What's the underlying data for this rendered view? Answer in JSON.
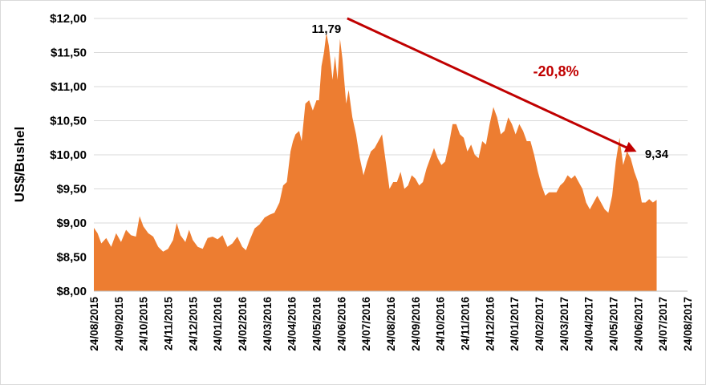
{
  "chart_data": {
    "type": "area",
    "title": "",
    "xlabel": "",
    "ylabel": "US$/Bushel",
    "ylim": [
      8.0,
      12.0
    ],
    "yticks": [
      "$8,00",
      "$8,50",
      "$9,00",
      "$9,50",
      "$10,00",
      "$10,50",
      "$11,00",
      "$11,50",
      "$12,00"
    ],
    "xticks": [
      "24/08/2015",
      "24/09/2015",
      "24/10/2015",
      "24/11/2015",
      "24/12/2015",
      "24/01/2016",
      "24/02/2016",
      "24/03/2016",
      "24/04/2016",
      "24/05/2016",
      "24/06/2016",
      "24/07/2016",
      "24/08/2016",
      "24/09/2016",
      "24/10/2016",
      "24/11/2016",
      "24/12/2016",
      "24/01/2017",
      "24/02/2017",
      "24/03/2017",
      "24/04/2017",
      "24/05/2017",
      "24/06/2017",
      "24/07/2017",
      "24/08/2017"
    ],
    "grid": true,
    "fill_color": "#ed7d31",
    "series": [
      {
        "points": [
          [
            0,
            8.93
          ],
          [
            0.15,
            8.85
          ],
          [
            0.3,
            8.7
          ],
          [
            0.5,
            8.78
          ],
          [
            0.7,
            8.65
          ],
          [
            0.9,
            8.85
          ],
          [
            1.1,
            8.72
          ],
          [
            1.3,
            8.9
          ],
          [
            1.5,
            8.82
          ],
          [
            1.7,
            8.8
          ],
          [
            1.85,
            9.1
          ],
          [
            2.0,
            8.95
          ],
          [
            2.2,
            8.85
          ],
          [
            2.4,
            8.8
          ],
          [
            2.6,
            8.65
          ],
          [
            2.8,
            8.58
          ],
          [
            3.0,
            8.62
          ],
          [
            3.2,
            8.75
          ],
          [
            3.35,
            9.0
          ],
          [
            3.5,
            8.82
          ],
          [
            3.7,
            8.72
          ],
          [
            3.85,
            8.9
          ],
          [
            4.0,
            8.75
          ],
          [
            4.2,
            8.65
          ],
          [
            4.4,
            8.62
          ],
          [
            4.6,
            8.78
          ],
          [
            4.8,
            8.8
          ],
          [
            5.0,
            8.76
          ],
          [
            5.2,
            8.82
          ],
          [
            5.4,
            8.65
          ],
          [
            5.6,
            8.7
          ],
          [
            5.8,
            8.8
          ],
          [
            6.0,
            8.65
          ],
          [
            6.15,
            8.6
          ],
          [
            6.3,
            8.75
          ],
          [
            6.5,
            8.92
          ],
          [
            6.7,
            8.98
          ],
          [
            6.9,
            9.08
          ],
          [
            7.1,
            9.12
          ],
          [
            7.3,
            9.15
          ],
          [
            7.5,
            9.3
          ],
          [
            7.65,
            9.55
          ],
          [
            7.8,
            9.6
          ],
          [
            7.95,
            10.05
          ],
          [
            8.05,
            10.2
          ],
          [
            8.15,
            10.3
          ],
          [
            8.3,
            10.35
          ],
          [
            8.4,
            10.2
          ],
          [
            8.55,
            10.75
          ],
          [
            8.7,
            10.8
          ],
          [
            8.85,
            10.65
          ],
          [
            9.0,
            10.8
          ],
          [
            9.1,
            10.8
          ],
          [
            9.2,
            11.3
          ],
          [
            9.3,
            11.5
          ],
          [
            9.4,
            11.79
          ],
          [
            9.5,
            11.6
          ],
          [
            9.65,
            11.1
          ],
          [
            9.75,
            11.45
          ],
          [
            9.85,
            11.1
          ],
          [
            9.95,
            11.7
          ],
          [
            10.05,
            11.4
          ],
          [
            10.2,
            10.75
          ],
          [
            10.3,
            10.95
          ],
          [
            10.45,
            10.55
          ],
          [
            10.6,
            10.3
          ],
          [
            10.75,
            9.95
          ],
          [
            10.9,
            9.7
          ],
          [
            11.05,
            9.9
          ],
          [
            11.2,
            10.05
          ],
          [
            11.35,
            10.1
          ],
          [
            11.5,
            10.2
          ],
          [
            11.65,
            10.3
          ],
          [
            11.8,
            9.9
          ],
          [
            11.95,
            9.5
          ],
          [
            12.1,
            9.6
          ],
          [
            12.25,
            9.6
          ],
          [
            12.4,
            9.75
          ],
          [
            12.55,
            9.5
          ],
          [
            12.7,
            9.55
          ],
          [
            12.85,
            9.7
          ],
          [
            13.0,
            9.65
          ],
          [
            13.15,
            9.55
          ],
          [
            13.3,
            9.6
          ],
          [
            13.45,
            9.8
          ],
          [
            13.6,
            9.95
          ],
          [
            13.75,
            10.1
          ],
          [
            13.9,
            9.95
          ],
          [
            14.05,
            9.85
          ],
          [
            14.2,
            9.9
          ],
          [
            14.35,
            10.15
          ],
          [
            14.5,
            10.45
          ],
          [
            14.65,
            10.45
          ],
          [
            14.8,
            10.3
          ],
          [
            14.95,
            10.25
          ],
          [
            15.1,
            10.05
          ],
          [
            15.25,
            10.15
          ],
          [
            15.4,
            10.0
          ],
          [
            15.55,
            9.95
          ],
          [
            15.7,
            10.2
          ],
          [
            15.85,
            10.15
          ],
          [
            16.0,
            10.45
          ],
          [
            16.15,
            10.7
          ],
          [
            16.3,
            10.55
          ],
          [
            16.45,
            10.3
          ],
          [
            16.6,
            10.35
          ],
          [
            16.75,
            10.55
          ],
          [
            16.9,
            10.45
          ],
          [
            17.05,
            10.3
          ],
          [
            17.2,
            10.45
          ],
          [
            17.35,
            10.35
          ],
          [
            17.5,
            10.2
          ],
          [
            17.65,
            10.2
          ],
          [
            17.8,
            10.0
          ],
          [
            17.95,
            9.75
          ],
          [
            18.1,
            9.55
          ],
          [
            18.25,
            9.4
          ],
          [
            18.4,
            9.45
          ],
          [
            18.55,
            9.45
          ],
          [
            18.7,
            9.45
          ],
          [
            18.85,
            9.55
          ],
          [
            19.0,
            9.6
          ],
          [
            19.15,
            9.7
          ],
          [
            19.3,
            9.65
          ],
          [
            19.45,
            9.7
          ],
          [
            19.6,
            9.6
          ],
          [
            19.75,
            9.5
          ],
          [
            19.9,
            9.3
          ],
          [
            20.05,
            9.2
          ],
          [
            20.2,
            9.3
          ],
          [
            20.35,
            9.4
          ],
          [
            20.5,
            9.3
          ],
          [
            20.65,
            9.2
          ],
          [
            20.8,
            9.15
          ],
          [
            20.95,
            9.4
          ],
          [
            21.1,
            9.9
          ],
          [
            21.25,
            10.25
          ],
          [
            21.4,
            9.85
          ],
          [
            21.55,
            10.05
          ],
          [
            21.7,
            9.95
          ],
          [
            21.85,
            9.75
          ],
          [
            22.0,
            9.6
          ],
          [
            22.15,
            9.3
          ],
          [
            22.3,
            9.3
          ],
          [
            22.45,
            9.35
          ],
          [
            22.6,
            9.3
          ],
          [
            22.75,
            9.34
          ]
        ]
      }
    ],
    "annotations": {
      "peak_label": "11,79",
      "end_label": "9,34",
      "change_label": "-20,8%",
      "arrow_color": "#c00000"
    }
  }
}
